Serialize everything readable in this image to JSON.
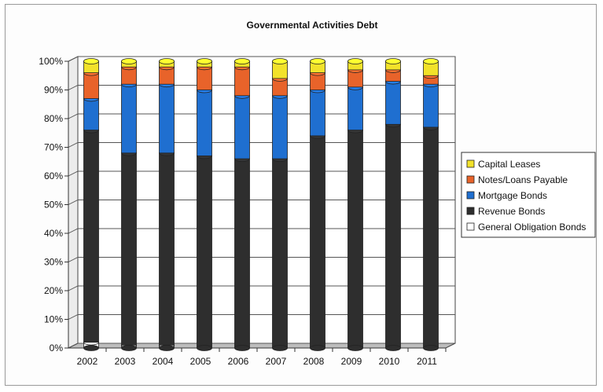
{
  "chart_data": {
    "type": "bar",
    "stacked": true,
    "percent": true,
    "title": "Governmental Activities Debt",
    "xlabel": "",
    "ylabel": "",
    "ylim": [
      0,
      100
    ],
    "yticks": [
      "0%",
      "10%",
      "20%",
      "30%",
      "40%",
      "50%",
      "60%",
      "70%",
      "80%",
      "90%",
      "100%"
    ],
    "categories": [
      "2002",
      "2003",
      "2004",
      "2005",
      "2006",
      "2007",
      "2008",
      "2009",
      "2010",
      "2011"
    ],
    "legend_position": "right",
    "grid": true,
    "series": [
      {
        "name": "General Obligation Bonds",
        "color": "#ffffff",
        "values": [
          2,
          1,
          1,
          0,
          0,
          0,
          0,
          0,
          0,
          0
        ]
      },
      {
        "name": "Revenue Bonds",
        "color": "#2e2e2e",
        "values": [
          74,
          67,
          67,
          67,
          66,
          66,
          74,
          76,
          78,
          77
        ]
      },
      {
        "name": "Mortgage Bonds",
        "color": "#1f6fd0",
        "values": [
          11,
          24,
          24,
          23,
          22,
          22,
          16,
          15,
          15,
          15
        ]
      },
      {
        "name": "Notes/Loans Payable",
        "color": "#e8632a",
        "values": [
          9,
          6,
          6,
          8,
          10,
          6,
          6,
          6,
          4,
          3
        ]
      },
      {
        "name": "Capital Leases",
        "color": "#f2e22a",
        "values": [
          4,
          2,
          2,
          2,
          2,
          6,
          4,
          3,
          3,
          5
        ]
      }
    ],
    "legend_order": [
      "Capital  Leases",
      "Notes/Loans Payable",
      "Mortgage Bonds",
      "Revenue Bonds",
      "General Obligation Bonds"
    ]
  }
}
